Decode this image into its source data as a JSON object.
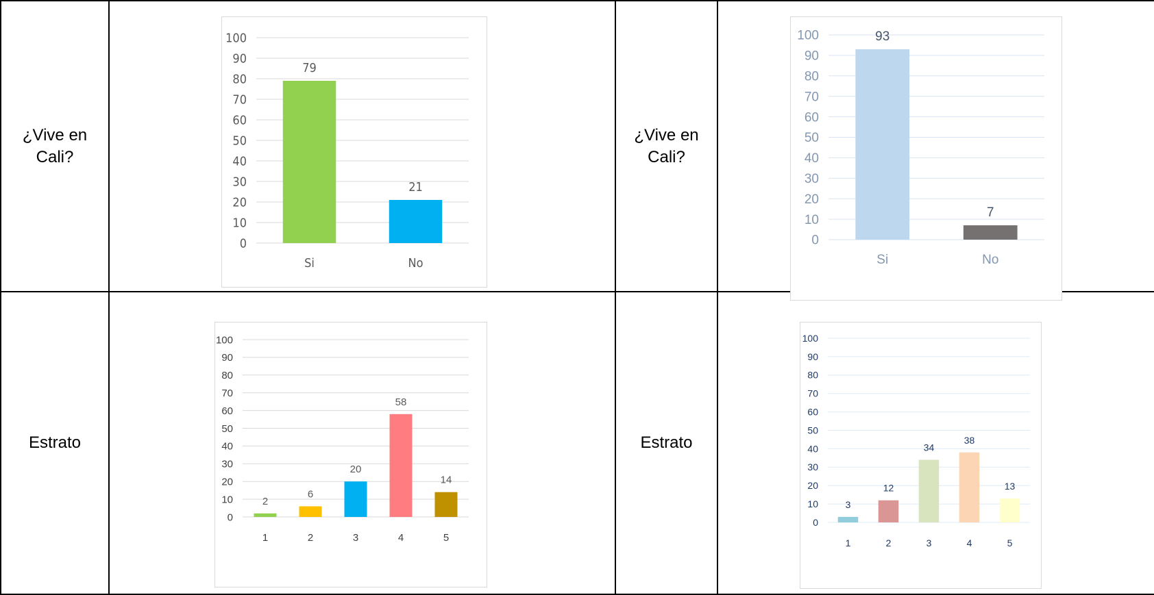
{
  "table": {
    "rows": [
      {
        "label_left": "¿Vive en\nCali?",
        "label_right": "¿Vive en\nCali?"
      },
      {
        "label_left": "Estrato",
        "label_right": "Estrato"
      }
    ]
  },
  "chart_data": [
    {
      "type": "bar",
      "categories": [
        "Si",
        "No"
      ],
      "values": [
        79,
        21
      ],
      "bar_colors": [
        "#92d050",
        "#00b0f0"
      ],
      "ylim": [
        0,
        100
      ],
      "yticks": [
        0,
        10,
        20,
        30,
        40,
        50,
        60,
        70,
        80,
        90,
        100
      ],
      "grid": true,
      "title": "",
      "xlabel": "",
      "ylabel": ""
    },
    {
      "type": "bar",
      "categories": [
        "Si",
        "No"
      ],
      "values": [
        93,
        7
      ],
      "bar_colors": [
        "#bdd7ee",
        "#767171"
      ],
      "ylim": [
        0,
        100
      ],
      "yticks": [
        0,
        10,
        20,
        30,
        40,
        50,
        60,
        70,
        80,
        90,
        100
      ],
      "grid": true,
      "title": "",
      "xlabel": "",
      "ylabel": ""
    },
    {
      "type": "bar",
      "categories": [
        "1",
        "2",
        "3",
        "4",
        "5"
      ],
      "values": [
        2,
        6,
        20,
        58,
        14
      ],
      "bar_colors": [
        "#92d050",
        "#ffc000",
        "#00b0f0",
        "#ff7c80",
        "#bf9000"
      ],
      "ylim": [
        0,
        100
      ],
      "yticks": [
        0,
        10,
        20,
        30,
        40,
        50,
        60,
        70,
        80,
        90,
        100
      ],
      "grid": true,
      "title": "",
      "xlabel": "",
      "ylabel": ""
    },
    {
      "type": "bar",
      "categories": [
        "1",
        "2",
        "3",
        "4",
        "5"
      ],
      "values": [
        3,
        12,
        34,
        38,
        13
      ],
      "bar_colors": [
        "#92cddc",
        "#da9694",
        "#d7e4bd",
        "#fcd5b5",
        "#ffffcc"
      ],
      "ylim": [
        0,
        100
      ],
      "yticks": [
        0,
        10,
        20,
        30,
        40,
        50,
        60,
        70,
        80,
        90,
        100
      ],
      "grid": true,
      "title": "",
      "xlabel": "",
      "ylabel": ""
    }
  ]
}
